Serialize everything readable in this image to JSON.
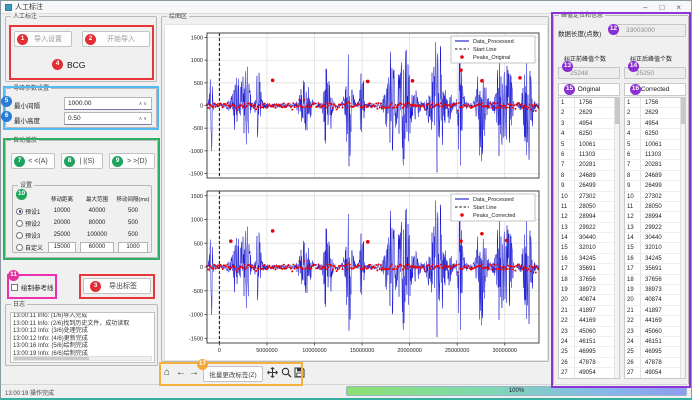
{
  "window": {
    "title": "人工标注",
    "minimize": "–",
    "maximize": "□",
    "close": "×"
  },
  "badges": {
    "n1": "1",
    "n2": "2",
    "n3": "3",
    "n4": "4",
    "n5": "5",
    "n6": "6",
    "n7": "7",
    "n8": "8",
    "n9": "9",
    "n10": "10",
    "n11": "11",
    "n12": "12",
    "n13": "13",
    "n14": "14",
    "n15": "15",
    "n16": "16",
    "n17": "17"
  },
  "left_panel": {
    "annotation_group": {
      "title": "人工标注",
      "import_settings_button": "导入设置",
      "start_import_button": "开始导入",
      "signal_type_label": "BCG"
    },
    "peak_params_group": {
      "title": "寻峰参数设置",
      "rows": [
        {
          "label": "最小间隔",
          "value": "1000.00"
        },
        {
          "label": "最小高度",
          "value": "0.50"
        }
      ]
    },
    "autoplay_group": {
      "title": "自动播放",
      "back_button": "< <(A)",
      "pause_button": "| |(S)",
      "forward_button": "> >(D)",
      "settings_group": {
        "title": "设置",
        "headers": [
          "移动距离",
          "最大范围",
          "移动间隔(ms)"
        ],
        "presets": [
          {
            "name": "预设1",
            "selected": true,
            "editable": false,
            "values": [
              "10000",
              "40000",
              "500"
            ]
          },
          {
            "name": "预设2",
            "selected": false,
            "editable": false,
            "values": [
              "20000",
              "80000",
              "500"
            ]
          },
          {
            "name": "预设3",
            "selected": false,
            "editable": false,
            "values": [
              "25000",
              "100000",
              "500"
            ]
          },
          {
            "name": "自定义",
            "selected": false,
            "editable": true,
            "values": [
              "15000",
              "60000",
              "1000"
            ]
          }
        ]
      }
    },
    "reference_line_checkbox": {
      "label": "绘制参考线",
      "checked": false
    },
    "export_labels_button": "导出标签",
    "log_group": {
      "title": "日志",
      "lines": [
        "13:00:11 Info: (1/6)导入完成",
        "13:00:11 Info: (2/6)找到历史文件，成功读取",
        "13:00:12 Info: (3/6)处理完成",
        "13:00:12 Info: (4/6)更新完成",
        "13:00:16 Info: (5/6)绘制完成",
        "13:00:19 Info: (6/6)绘制完成"
      ]
    }
  },
  "plot_panel": {
    "title": "绘图区",
    "toolbar": {
      "home_icon": "⌂",
      "back_icon": "←",
      "forward_icon": "→",
      "batch_edit_button": "批量更改标签(Z)"
    }
  },
  "chart_data": [
    {
      "type": "line",
      "series": [
        {
          "name": "Data_Processed",
          "color": "#1515cf",
          "style": "solid"
        },
        {
          "name": "Start Line",
          "color": "#111111",
          "style": "dashed"
        },
        {
          "name": "Peaks_Original",
          "color": "#e8000b",
          "style": "marker"
        }
      ],
      "xlim": [
        -1300000,
        33600000
      ],
      "ylim": [
        -1600,
        1600
      ],
      "xticks": [
        0,
        5000000,
        10000000,
        15000000,
        20000000,
        25000000,
        30000000
      ],
      "yticks": [
        -1500,
        -1000,
        -500,
        0,
        500,
        1000,
        1500
      ],
      "grid": true,
      "legend_position": "upper right",
      "start_line_x": 0,
      "description": "Dense noisy BCG signal around 0 with burst spikes to ±1500; red peak markers clustered near 0",
      "highlight_peaks": [
        {
          "x": 5600000,
          "y": 555
        },
        {
          "x": 15600000,
          "y": 530
        },
        {
          "x": 20300000,
          "y": 545
        },
        {
          "x": 25400000,
          "y": 780
        },
        {
          "x": 27600000,
          "y": 545
        },
        {
          "x": 31600000,
          "y": 610
        }
      ]
    },
    {
      "type": "line",
      "series": [
        {
          "name": "Data_Processed",
          "color": "#1515cf",
          "style": "solid"
        },
        {
          "name": "Start Line",
          "color": "#111111",
          "style": "dashed"
        },
        {
          "name": "Peaks_Corrected",
          "color": "#e8000b",
          "style": "marker"
        }
      ],
      "xlim": [
        -1300000,
        33600000
      ],
      "ylim": [
        -1600,
        1600
      ],
      "xticks": [
        0,
        5000000,
        10000000,
        15000000,
        20000000,
        25000000,
        30000000
      ],
      "yticks": [
        -1500,
        -1000,
        -500,
        0,
        500,
        1000,
        1500
      ],
      "grid": true,
      "legend_position": "upper right",
      "start_line_x": 0,
      "description": "Same processed signal with corrected red peak markers clustered near 0",
      "highlight_peaks": [
        {
          "x": 1200000,
          "y": 545
        },
        {
          "x": 5600000,
          "y": 760
        },
        {
          "x": 15600000,
          "y": 530
        },
        {
          "x": 25400000,
          "y": 545
        },
        {
          "x": 27600000,
          "y": 700
        },
        {
          "x": 30200000,
          "y": 560
        }
      ]
    }
  ],
  "right_panel": {
    "title": "峰值定位和信息",
    "data_length_label": "数据长度(点数)",
    "data_length_value": "33003000",
    "before_count_label": "纠正前峰值个数",
    "before_count_value": "25248",
    "after_count_label": "纠正后峰值个数",
    "after_count_value": "25250",
    "original_header": "Original",
    "corrected_header": "Corrected",
    "indices": [
      "1",
      "2",
      "3",
      "4",
      "5",
      "6",
      "7",
      "8",
      "9",
      "10",
      "11",
      "12",
      "13",
      "14",
      "15",
      "16",
      "17",
      "18",
      "19",
      "20",
      "21",
      "22",
      "23",
      "24",
      "25",
      "26",
      "27"
    ],
    "original_values": [
      "1756",
      "2629",
      "4954",
      "6250",
      "10061",
      "11303",
      "20281",
      "24689",
      "26499",
      "27302",
      "28050",
      "28994",
      "29922",
      "30440",
      "32010",
      "34245",
      "35691",
      "37656",
      "38973",
      "40874",
      "41897",
      "44169",
      "45060",
      "46151",
      "46995",
      "47878",
      "49054"
    ],
    "corrected_values": [
      "1756",
      "2629",
      "4954",
      "6250",
      "10061",
      "11303",
      "20281",
      "24689",
      "26499",
      "27302",
      "28050",
      "28994",
      "29922",
      "30440",
      "32010",
      "34245",
      "35691",
      "37656",
      "38973",
      "40874",
      "41897",
      "44169",
      "45060",
      "46151",
      "46995",
      "47878",
      "49054"
    ]
  },
  "icons": {
    "spin_up": "∧",
    "spin_down": "∨"
  },
  "status_bar": {
    "message": "13:00:19 操作完成",
    "progress_label": "100%",
    "progress_percent": 100
  }
}
